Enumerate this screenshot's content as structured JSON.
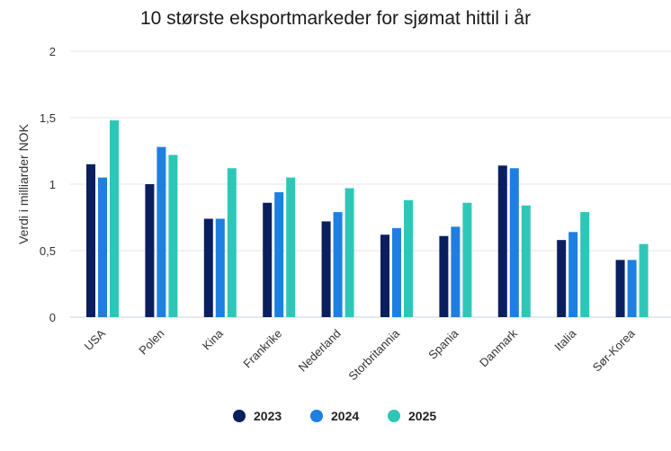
{
  "chart_data": {
    "type": "bar",
    "title": "10 største eksportmarkeder for sjømat hittil i år",
    "xlabel": "",
    "ylabel": "Verdi i milliarder NOK",
    "ylim": [
      0,
      2
    ],
    "yticks": [
      {
        "value": 0,
        "label": "0"
      },
      {
        "value": 0.5,
        "label": "0,5"
      },
      {
        "value": 1,
        "label": "1"
      },
      {
        "value": 1.5,
        "label": "1,5"
      },
      {
        "value": 2,
        "label": "2"
      }
    ],
    "grid": true,
    "legend_position": "bottom",
    "categories": [
      "USA",
      "Polen",
      "Kina",
      "Frankrike",
      "Nederland",
      "Storbritannia",
      "Spania",
      "Danmark",
      "Italia",
      "Sør-Korea"
    ],
    "series": [
      {
        "name": "2023",
        "color": "#0b1f5f",
        "values": [
          1.15,
          1.0,
          0.74,
          0.86,
          0.72,
          0.62,
          0.61,
          1.14,
          0.58,
          0.43
        ]
      },
      {
        "name": "2024",
        "color": "#1e7fe0",
        "values": [
          1.05,
          1.28,
          0.74,
          0.94,
          0.79,
          0.67,
          0.68,
          1.12,
          0.64,
          0.43
        ]
      },
      {
        "name": "2025",
        "color": "#2ec7b7",
        "values": [
          1.48,
          1.22,
          1.12,
          1.05,
          0.97,
          0.88,
          0.86,
          0.84,
          0.79,
          0.55
        ]
      }
    ]
  }
}
